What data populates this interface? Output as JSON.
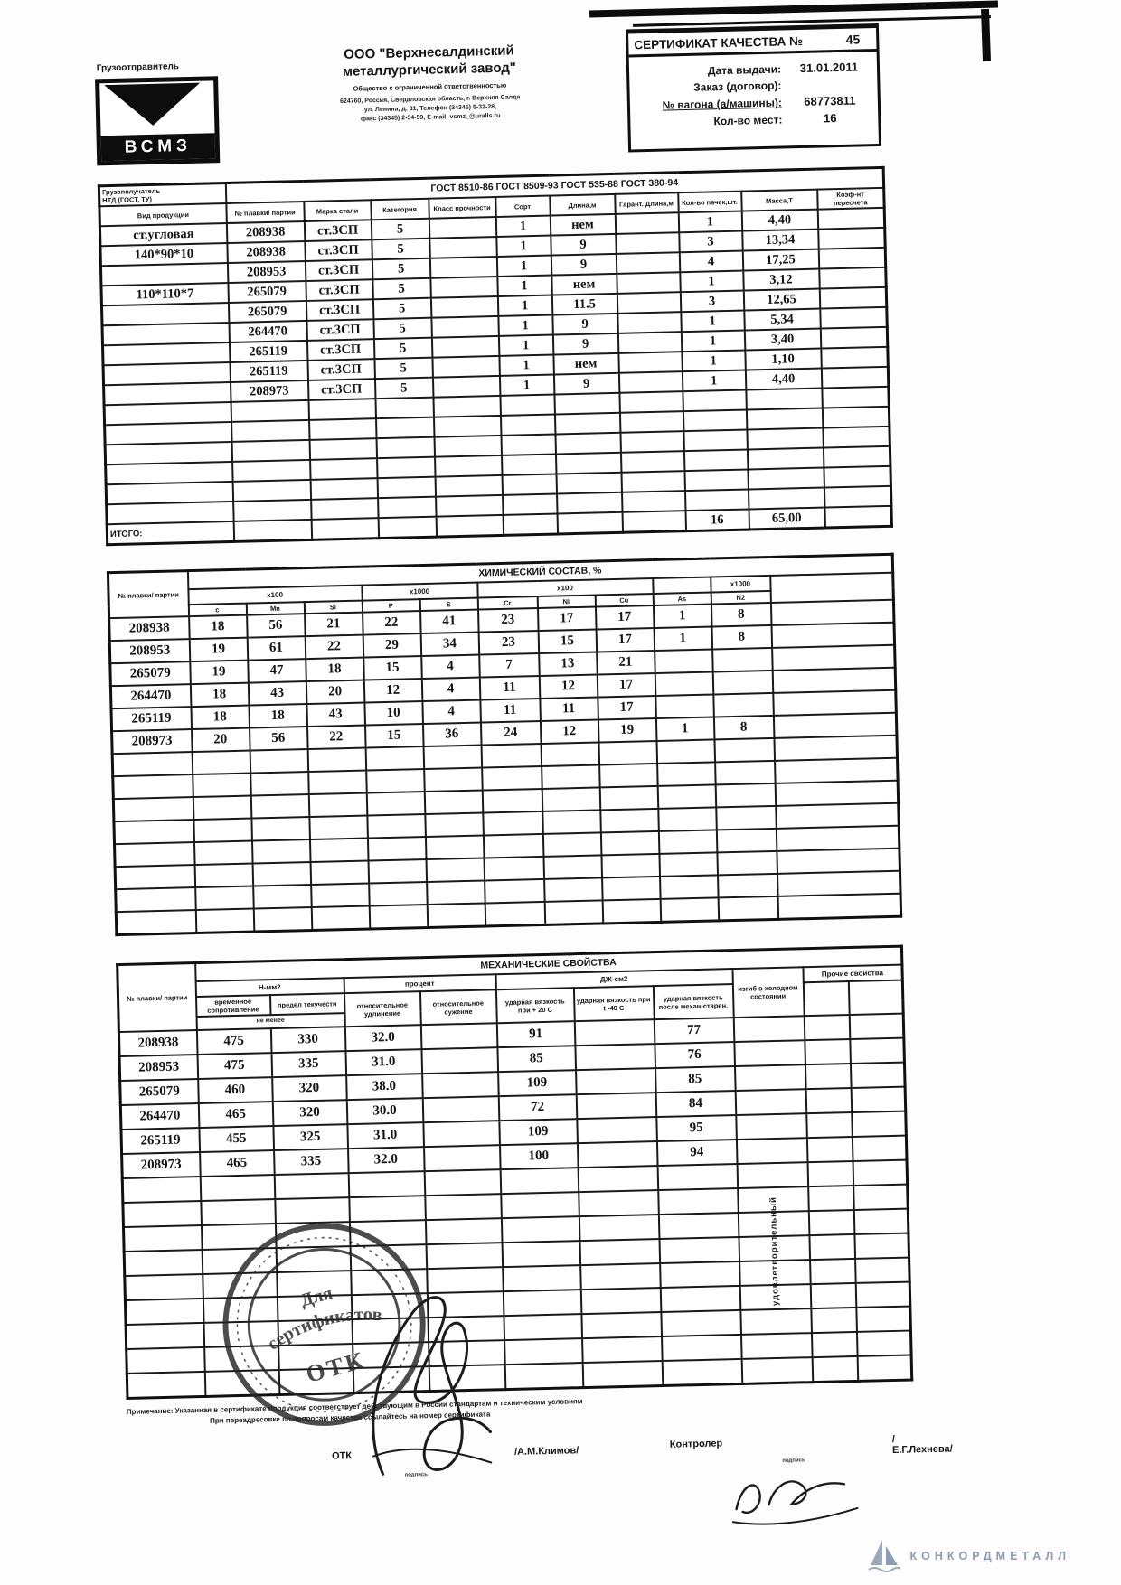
{
  "page": {
    "shipper_label": "Грузоотправитель",
    "logo_text": "ВСМЗ",
    "company_line1": "ООО \"Верхнесалдинский",
    "company_line2": "металлургический завод\"",
    "company_sub": "Общество с ограниченной ответственностью",
    "address_line1": "624760, Россия, Свердловская область, г. Верхняя Салда",
    "address_line2": "ул. Ленина, д. 31, Телефон (34345) 5-32-28,",
    "address_line3": "факс (34345) 2-34-59, E-mail: vsmz_@uralls.ru"
  },
  "certificate": {
    "title": "СЕРТИФИКАТ КАЧЕСТВА №",
    "number": "45",
    "fields": [
      {
        "label": "Дата выдачи:",
        "value": "31.01.2011"
      },
      {
        "label": "Заказ (договор):",
        "value": ""
      },
      {
        "label": "№ вагона (а/машины):",
        "value": "68773811"
      },
      {
        "label": "Кол-во мест:",
        "value": "16"
      }
    ]
  },
  "products_table": {
    "consignee_label1": "Грузополучатель",
    "consignee_label2": "НТД (ГОСТ, ТУ)",
    "gost_header": "ГОСТ 8510-86 ГОСТ 8509-93 ГОСТ 535-88 ГОСТ 380-94",
    "columns": [
      "Вид продукции",
      "№ плавки/ партии",
      "Марка стали",
      "Категория",
      "Класс прочности",
      "Сорт",
      "Длина,м",
      "Гарант. Длина,м",
      "Кол-во пачек,шт.",
      "Масса,Т",
      "Коэф-нт пересчета"
    ],
    "rows": [
      [
        "ст.угловая",
        "208938",
        "ст.3СП",
        "5",
        "",
        "1",
        "нем",
        "",
        "1",
        "4,40",
        ""
      ],
      [
        "140*90*10",
        "208938",
        "ст.3СП",
        "5",
        "",
        "1",
        "9",
        "",
        "3",
        "13,34",
        ""
      ],
      [
        "",
        "208953",
        "ст.3СП",
        "5",
        "",
        "1",
        "9",
        "",
        "4",
        "17,25",
        ""
      ],
      [
        "110*110*7",
        "265079",
        "ст.3СП",
        "5",
        "",
        "1",
        "нем",
        "",
        "1",
        "3,12",
        ""
      ],
      [
        "",
        "265079",
        "ст.3СП",
        "5",
        "",
        "1",
        "11.5",
        "",
        "3",
        "12,65",
        ""
      ],
      [
        "",
        "264470",
        "ст.3СП",
        "5",
        "",
        "1",
        "9",
        "",
        "1",
        "5,34",
        ""
      ],
      [
        "",
        "265119",
        "ст.3СП",
        "5",
        "",
        "1",
        "9",
        "",
        "1",
        "3,40",
        ""
      ],
      [
        "",
        "265119",
        "ст.3СП",
        "5",
        "",
        "1",
        "нем",
        "",
        "1",
        "1,10",
        ""
      ],
      [
        "",
        "208973",
        "ст.3СП",
        "5",
        "",
        "1",
        "9",
        "",
        "1",
        "4,40",
        ""
      ]
    ],
    "total_rows": [
      [
        "ИТОГО:",
        "",
        "",
        "",
        "",
        "",
        "",
        "",
        "16",
        "65,00",
        ""
      ]
    ]
  },
  "chemistry_table": {
    "title": "ХИМИЧЕСКИЙ СОСТАВ, %",
    "heat_label": "№ плавки/ партии",
    "groups": [
      "х100",
      "х1000",
      "х100",
      "",
      "х1000"
    ],
    "columns": [
      "с",
      "Mn",
      "Si",
      "P",
      "S",
      "Cr",
      "Ni",
      "Cu",
      "As",
      "N2"
    ],
    "rows": [
      [
        "208938",
        "18",
        "56",
        "21",
        "22",
        "41",
        "23",
        "17",
        "17",
        "1",
        "8",
        ""
      ],
      [
        "208953",
        "19",
        "61",
        "22",
        "29",
        "34",
        "23",
        "15",
        "17",
        "1",
        "8",
        ""
      ],
      [
        "265079",
        "19",
        "47",
        "18",
        "15",
        "4",
        "7",
        "13",
        "21",
        "",
        "",
        ""
      ],
      [
        "264470",
        "18",
        "43",
        "20",
        "12",
        "4",
        "11",
        "12",
        "17",
        "",
        "",
        ""
      ],
      [
        "265119",
        "18",
        "18",
        "43",
        "10",
        "4",
        "11",
        "11",
        "17",
        "",
        "",
        ""
      ],
      [
        "208973",
        "20",
        "56",
        "22",
        "15",
        "36",
        "24",
        "12",
        "19",
        "1",
        "8",
        ""
      ]
    ]
  },
  "mechanical_table": {
    "title": "МЕХАНИЧЕСКИЕ СВОЙСТВА",
    "heat_label": "№ плавки/ партии",
    "group_nmm2": "Н-мм2",
    "group_percent": "процент",
    "group_j": "ДЖ-см2",
    "col_bend": "изгиб в холодном состоянии",
    "group_other": "Прочие свойства",
    "columns": [
      "временное сопротивление",
      "предел текучести",
      "относительное удлинение",
      "относительное сужение",
      "ударная вязкость при + 20  С",
      "ударная вязкость при t -40 С",
      "ударная вязкость после механ-старен.",
      "",
      ""
    ],
    "not_less_label": "не менее",
    "bend_result": "удовлетворительный",
    "rows": [
      [
        "208938",
        "475",
        "330",
        "32.0",
        "",
        "91",
        "",
        "77",
        "",
        "",
        ""
      ],
      [
        "208953",
        "475",
        "335",
        "31.0",
        "",
        "85",
        "",
        "76",
        "",
        "",
        ""
      ],
      [
        "265079",
        "460",
        "320",
        "38.0",
        "",
        "109",
        "",
        "85",
        "",
        "",
        ""
      ],
      [
        "264470",
        "465",
        "320",
        "30.0",
        "",
        "72",
        "",
        "84",
        "",
        "",
        ""
      ],
      [
        "265119",
        "455",
        "325",
        "31.0",
        "",
        "109",
        "",
        "95",
        "",
        "",
        ""
      ],
      [
        "208973",
        "465",
        "335",
        "32.0",
        "",
        "100",
        "",
        "94",
        "",
        "",
        ""
      ]
    ]
  },
  "footer": {
    "note1": "Примечание: Указанная в сертификате продукция соответствует действующим в России стандартам и техническим условиям",
    "note2": "При переадресовке по вопросам качества ссылайтесь на номер сертификата",
    "stamp_word1": "Для",
    "stamp_word2": "сертификатов",
    "stamp_word3": "ОТК",
    "otk_label": "ОТК",
    "otk_name": "/А.М.Климов/",
    "controller_label": "Контролер",
    "controller_name": "/Е.Г.Лехнева/",
    "signature_caption": "подпись",
    "brand": "КОНКОРДМЕТАЛЛ",
    "brand_color": "#8d9db1"
  }
}
